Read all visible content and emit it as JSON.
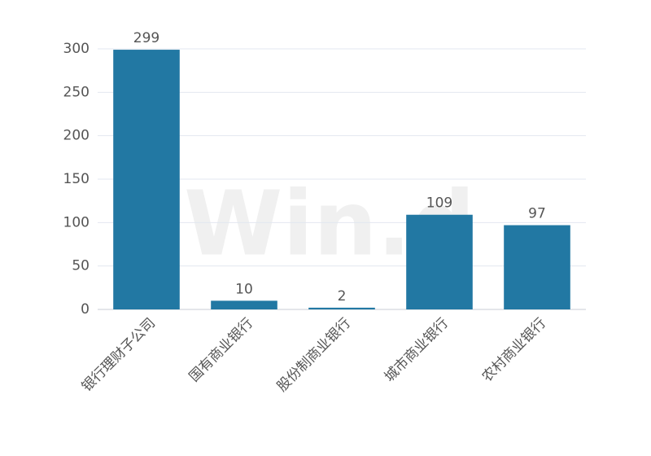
{
  "chart_data": {
    "type": "bar",
    "watermark": "Win.d",
    "categories": [
      "银行理财子公司",
      "国有商业银行",
      "股份制商业银行",
      "城市商业银行",
      "农村商业银行"
    ],
    "values": [
      299,
      10,
      2,
      109,
      97
    ],
    "color": "#2278a3",
    "ylim": [
      0,
      300
    ],
    "yticks": [
      0,
      50,
      100,
      150,
      200,
      250,
      300
    ],
    "grid": true,
    "data_labels": true
  }
}
